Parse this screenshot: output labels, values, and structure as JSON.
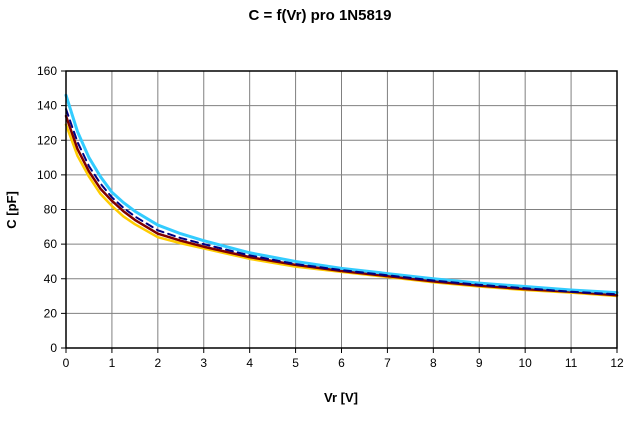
{
  "chart_data": {
    "type": "line",
    "title": "C = f(Vr) pro 1N5819",
    "xlabel": "Vr [V]",
    "ylabel": "C [pF]",
    "xlim": [
      0,
      12
    ],
    "ylim": [
      0,
      160
    ],
    "xticks": [
      0,
      1,
      2,
      3,
      4,
      5,
      6,
      7,
      8,
      9,
      10,
      11,
      12
    ],
    "yticks": [
      0,
      20,
      40,
      60,
      80,
      100,
      120,
      140,
      160
    ],
    "grid": true,
    "legend_position": "none",
    "x": [
      0,
      0.25,
      0.5,
      0.75,
      1,
      1.25,
      1.5,
      2,
      2.5,
      3,
      4,
      5,
      6,
      7,
      8,
      9,
      10,
      11,
      12
    ],
    "series": [
      {
        "name": "curve-yellow",
        "color": "#FFCC00",
        "width": 2.5,
        "dash": "",
        "values": [
          129,
          111,
          99,
          89,
          82,
          76,
          71.5,
          64,
          60.5,
          57.5,
          51.5,
          47,
          44,
          41,
          38,
          35.5,
          33.5,
          32,
          30
        ]
      },
      {
        "name": "curve-maroon",
        "color": "#800000",
        "width": 2.5,
        "dash": "",
        "values": [
          134,
          115,
          102,
          92,
          85,
          79,
          74,
          66,
          62,
          58.5,
          52.5,
          48,
          44.5,
          41.5,
          38.5,
          36,
          34,
          32.5,
          30.5
        ]
      },
      {
        "name": "curve-cyan",
        "color": "#33CCFF",
        "width": 3,
        "dash": "",
        "values": [
          146,
          125,
          110,
          99,
          90,
          84,
          79,
          71,
          66,
          62,
          55,
          50,
          46,
          43,
          40,
          37.5,
          35.5,
          33.5,
          32
        ]
      },
      {
        "name": "curve-navy-dashed",
        "color": "#000080",
        "width": 2,
        "dash": "7 5",
        "values": [
          138,
          119,
          105,
          95,
          87,
          81,
          76,
          68,
          63.5,
          60,
          53.5,
          48.5,
          45,
          42,
          39,
          36.5,
          34.5,
          32.5,
          31
        ]
      }
    ],
    "grid_color": "#808080",
    "frame_color": "#000000"
  }
}
